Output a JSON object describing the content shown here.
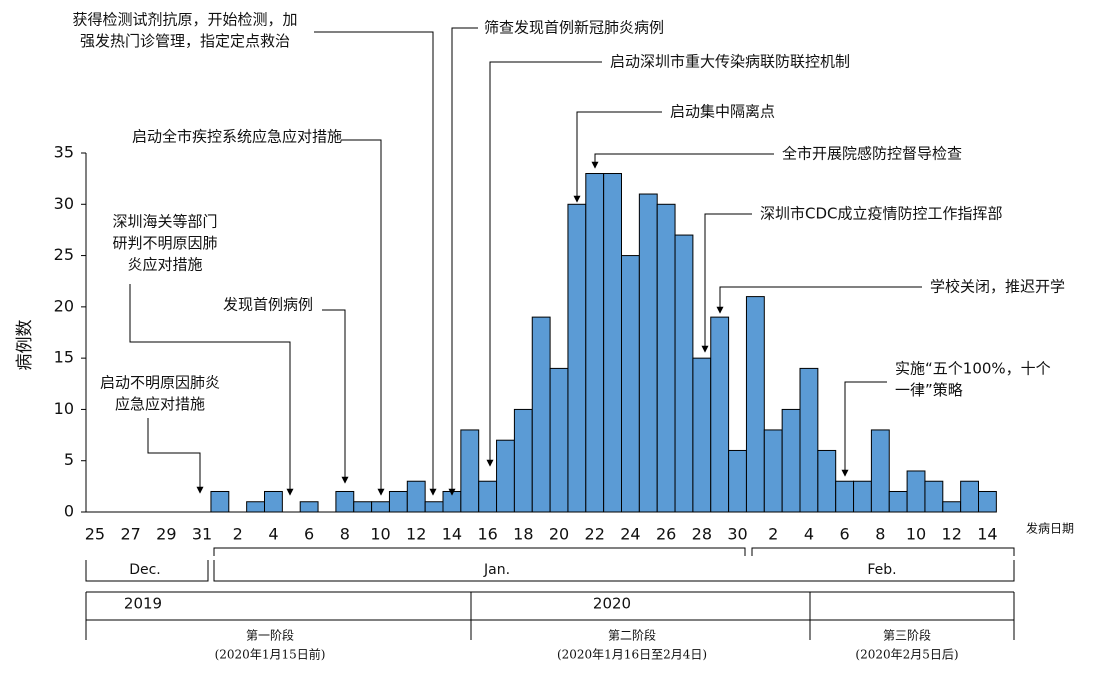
{
  "chart_data": {
    "type": "bar",
    "y_label": "病例数",
    "x_label": "发病日期",
    "categories": [
      "25",
      null,
      "27",
      null,
      "29",
      null,
      "31",
      null,
      "2",
      null,
      "4",
      null,
      "6",
      null,
      "8",
      null,
      "10",
      null,
      "12",
      null,
      "14",
      null,
      "16",
      null,
      "18",
      null,
      "20",
      null,
      "22",
      null,
      "24",
      null,
      "26",
      null,
      "28",
      null,
      "30",
      null,
      "2",
      null,
      "4",
      null,
      "6",
      null,
      "8",
      null,
      "10",
      null,
      "12",
      null,
      "14"
    ],
    "values": [
      0,
      0,
      0,
      0,
      0,
      0,
      0,
      2,
      0,
      1,
      2,
      0,
      1,
      0,
      2,
      1,
      1,
      2,
      3,
      1,
      2,
      8,
      3,
      7,
      10,
      19,
      14,
      30,
      33,
      33,
      25,
      31,
      30,
      27,
      15,
      19,
      6,
      21,
      8,
      10,
      14,
      6,
      3,
      3,
      8,
      2,
      4,
      3,
      1,
      3,
      2
    ],
    "color": "#5b9bd5",
    "ylim": [
      0,
      35
    ],
    "yticks": [
      0,
      5,
      10,
      15,
      20,
      25,
      30,
      35
    ],
    "months": [
      "Dec.",
      "Jan.",
      "Feb."
    ],
    "years": [
      "2019",
      "2020"
    ],
    "phases": [
      {
        "name": "第一阶段",
        "range": "(2020年1月15日前)"
      },
      {
        "name": "第二阶段",
        "range": "(2020年1月16日至2月4日)"
      },
      {
        "name": "第三阶段",
        "range": "(2020年2月5日后)"
      }
    ],
    "annotations": [
      [
        "获得检测试剂抗原，开始检测，加",
        "强发热门诊管理，指定定点救治"
      ],
      [
        "筛查发现首例新冠肺炎病例"
      ],
      [
        "启动深圳市重大传染病联防联控机制"
      ],
      [
        "启动集中隔离点"
      ],
      [
        "全市开展院感防控督导检查"
      ],
      [
        "深圳市CDC成立疫情防控工作指挥部"
      ],
      [
        "学校关闭，推迟开学"
      ],
      [
        "实施“五个100%，十个",
        "一律”策略"
      ],
      [
        "启动全市疾控系统应急应对措施"
      ],
      [
        "深圳海关等部门",
        "研判不明原因肺",
        "炎应对措施"
      ],
      [
        "发现首例病例"
      ],
      [
        "启动不明原因肺炎",
        "应急应对措施"
      ]
    ]
  }
}
